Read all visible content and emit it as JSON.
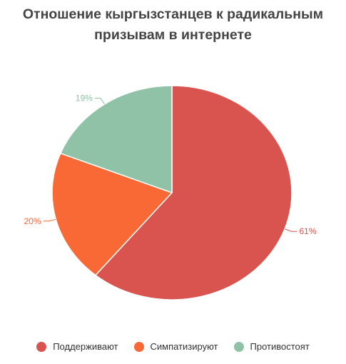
{
  "chart_data": {
    "type": "pie",
    "title": [
      "Отношение кыргызстанцев к радикальным",
      "призывам в интернете"
    ],
    "slices": [
      {
        "name": "Поддерживают",
        "value": 61,
        "label": "61%",
        "color": "#d9534f"
      },
      {
        "name": "Симпатизируют",
        "value": 20,
        "label": "20%",
        "color": "#f96936"
      },
      {
        "name": "Противостоят",
        "value": 19,
        "label": "19%",
        "color": "#8fc2a6"
      }
    ],
    "legend_position": "bottom"
  }
}
